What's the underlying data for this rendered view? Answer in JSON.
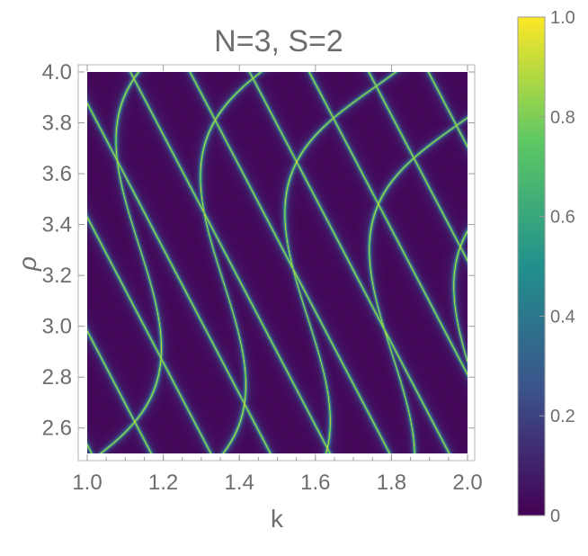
{
  "chart_data": {
    "type": "heatmap",
    "title": "N=3, S=2",
    "xlabel": "k",
    "ylabel": "ρ",
    "xlim": [
      1.0,
      2.0
    ],
    "ylim": [
      2.5,
      4.0
    ],
    "x_ticks": [
      1.0,
      1.2,
      1.4,
      1.6,
      1.8,
      2.0
    ],
    "x_tick_labels": [
      "1.0",
      "1.2",
      "1.4",
      "1.6",
      "1.8",
      "2.0"
    ],
    "y_ticks": [
      2.6,
      2.8,
      3.0,
      3.2,
      3.4,
      3.6,
      3.8,
      4.0
    ],
    "y_tick_labels": [
      "2.6",
      "2.8",
      "3.0",
      "3.2",
      "3.4",
      "3.6",
      "3.8",
      "4.0"
    ],
    "colorbar": {
      "range": [
        0,
        1
      ],
      "ticks": [
        0,
        0.2,
        0.4,
        0.6,
        0.8,
        1.0
      ],
      "tick_labels": [
        "0",
        "0.2",
        "0.4",
        "0.6",
        "0.8",
        "1.0"
      ],
      "colormap": [
        "#440154",
        "#3b528b",
        "#21908d",
        "#5dc863",
        "#fde725"
      ]
    },
    "value_range": [
      0,
      1
    ],
    "grid": false
  }
}
